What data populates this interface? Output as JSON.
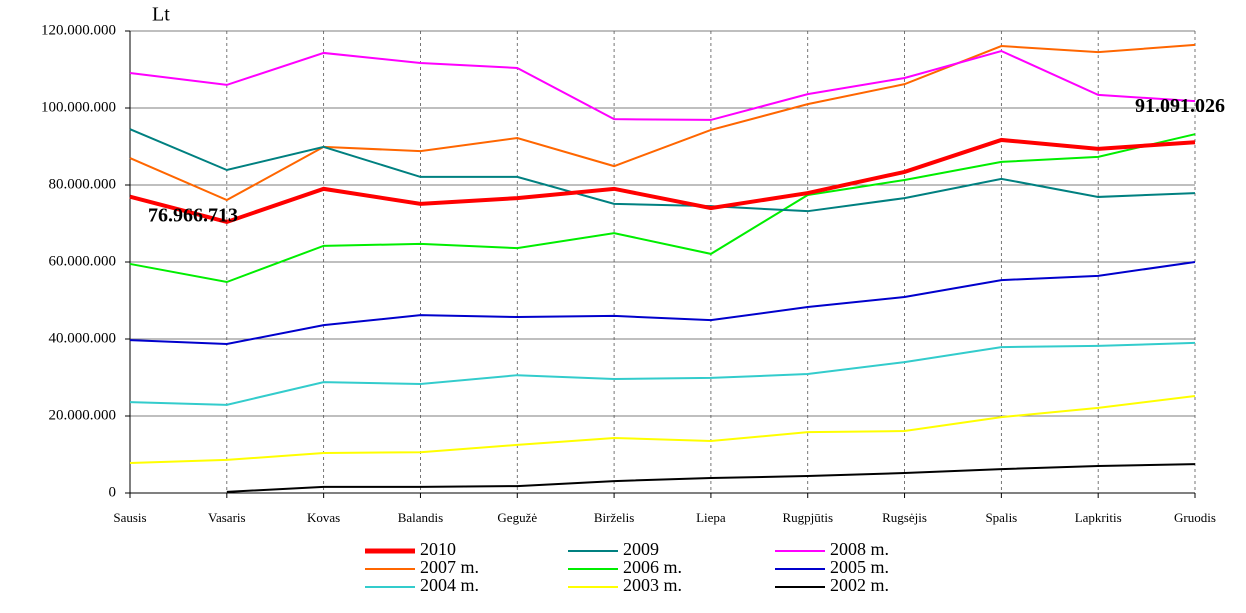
{
  "chart_data": {
    "type": "line",
    "y_label": "Lt",
    "categories": [
      "Sausis",
      "Vasaris",
      "Kovas",
      "Balandis",
      "Gegužė",
      "Birželis",
      "Liepa",
      "Rugpjūtis",
      "Rugsėjis",
      "Spalis",
      "Lapkritis",
      "Gruodis"
    ],
    "ylim": [
      0,
      120000000
    ],
    "yticks": [
      0,
      {
        "value": 20000000,
        "label": "20.000.000"
      },
      {
        "value": 40000000,
        "label": "40.000.000"
      },
      {
        "value": 60000000,
        "label": "60.000.000"
      },
      {
        "value": 80000000,
        "label": "80.000.000"
      },
      {
        "value": 100000000,
        "label": "100.000.000"
      },
      {
        "value": 120000000,
        "label": "120.000.000"
      }
    ],
    "grid": true,
    "legend": "bottom",
    "series": [
      {
        "name": "2010",
        "color": "#ff0000",
        "values": [
          76966713,
          70400000,
          79000000,
          75100000,
          76600000,
          79000000,
          74000000,
          77900000,
          83400000,
          91700000,
          89400000,
          91091026
        ],
        "value_labels": [
          "76.966.713",
          null,
          null,
          null,
          null,
          null,
          null,
          null,
          null,
          null,
          null,
          "91.091.026"
        ]
      },
      {
        "name": "2009",
        "color": "#008080",
        "values": [
          94500000,
          83900000,
          89900000,
          82100000,
          82100000,
          75100000,
          74500000,
          73200000,
          76600000,
          81600000,
          76900000,
          77900000
        ]
      },
      {
        "name": "2008 m.",
        "color": "#ff00ff",
        "values": [
          109100000,
          106000000,
          114300000,
          111700000,
          110400000,
          97100000,
          96900000,
          103600000,
          107800000,
          114800000,
          103400000,
          101800000
        ]
      },
      {
        "name": "2007 m.",
        "color": "#ff6600",
        "values": [
          87000000,
          76100000,
          89900000,
          88800000,
          92200000,
          84900000,
          94300000,
          101000000,
          106200000,
          116100000,
          114500000,
          116400000
        ]
      },
      {
        "name": "2006 m.",
        "color": "#00ee00",
        "values": [
          59500000,
          54800000,
          64200000,
          64700000,
          63600000,
          67500000,
          62100000,
          77400000,
          81300000,
          86000000,
          87300000,
          93200000
        ]
      },
      {
        "name": "2005 m.",
        "color": "#0000cc",
        "values": [
          39700000,
          38700000,
          43600000,
          46200000,
          45700000,
          46000000,
          44900000,
          48300000,
          50900000,
          55300000,
          56400000,
          60000000
        ]
      },
      {
        "name": "2004 m.",
        "color": "#33cccc",
        "values": [
          23600000,
          22900000,
          28800000,
          28300000,
          30600000,
          29600000,
          29900000,
          30900000,
          34000000,
          37900000,
          38200000,
          39000000
        ]
      },
      {
        "name": "2003 m.",
        "color": "#ffff00",
        "values": [
          7800000,
          8600000,
          10400000,
          10600000,
          12500000,
          14300000,
          13500000,
          15800000,
          16100000,
          19700000,
          22100000,
          25200000
        ]
      },
      {
        "name": "2002 m.",
        "color": "#000000",
        "values": [
          null,
          300000,
          1600000,
          1600000,
          1800000,
          3100000,
          3900000,
          4400000,
          5200000,
          6200000,
          7000000,
          7500000
        ]
      }
    ]
  }
}
